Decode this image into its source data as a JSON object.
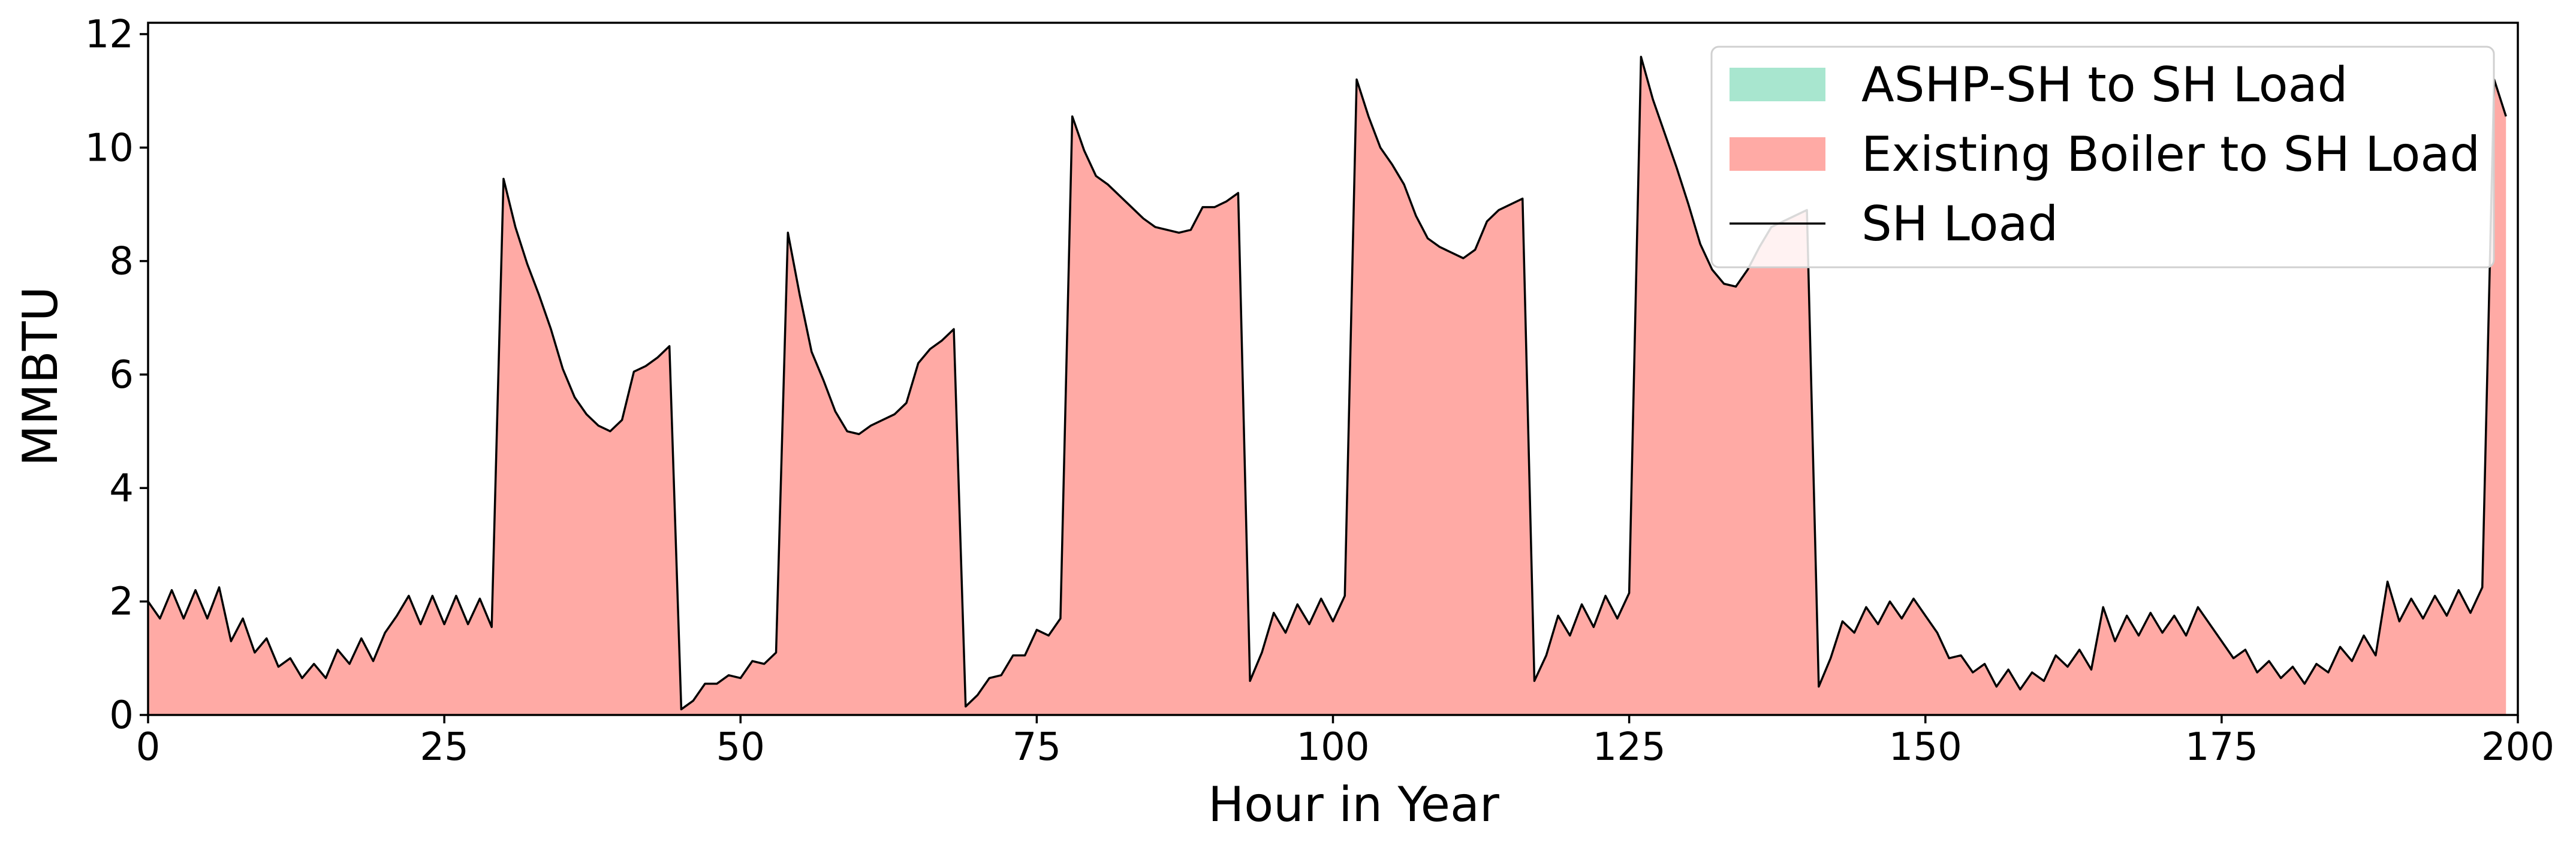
{
  "chart_data": {
    "type": "area",
    "title": "",
    "xlabel": "Hour in Year",
    "ylabel": "MMBTU",
    "xlim": [
      0,
      200
    ],
    "ylim": [
      0,
      12.2
    ],
    "x_ticks": [
      0,
      25,
      50,
      75,
      100,
      125,
      150,
      175,
      200
    ],
    "y_ticks": [
      0,
      2,
      4,
      6,
      8,
      10,
      12
    ],
    "grid": false,
    "legend_position": "top-right",
    "x": [
      0,
      1,
      2,
      3,
      4,
      5,
      6,
      7,
      8,
      9,
      10,
      11,
      12,
      13,
      14,
      15,
      16,
      17,
      18,
      19,
      20,
      21,
      22,
      23,
      24,
      25,
      26,
      27,
      28,
      29,
      30,
      31,
      32,
      33,
      34,
      35,
      36,
      37,
      38,
      39,
      40,
      41,
      42,
      43,
      44,
      45,
      46,
      47,
      48,
      49,
      50,
      51,
      52,
      53,
      54,
      55,
      56,
      57,
      58,
      59,
      60,
      61,
      62,
      63,
      64,
      65,
      66,
      67,
      68,
      69,
      70,
      71,
      72,
      73,
      74,
      75,
      76,
      77,
      78,
      79,
      80,
      81,
      82,
      83,
      84,
      85,
      86,
      87,
      88,
      89,
      90,
      91,
      92,
      93,
      94,
      95,
      96,
      97,
      98,
      99,
      100,
      101,
      102,
      103,
      104,
      105,
      106,
      107,
      108,
      109,
      110,
      111,
      112,
      113,
      114,
      115,
      116,
      117,
      118,
      119,
      120,
      121,
      122,
      123,
      124,
      125,
      126,
      127,
      128,
      129,
      130,
      131,
      132,
      133,
      134,
      135,
      136,
      137,
      138,
      139,
      140,
      141,
      142,
      143,
      144,
      145,
      146,
      147,
      148,
      149,
      150,
      151,
      152,
      153,
      154,
      155,
      156,
      157,
      158,
      159,
      160,
      161,
      162,
      163,
      164,
      165,
      166,
      167,
      168,
      169,
      170,
      171,
      172,
      173,
      174,
      175,
      176,
      177,
      178,
      179,
      180,
      181,
      182,
      183,
      184,
      185,
      186,
      187,
      188,
      189,
      190,
      191,
      192,
      193,
      194,
      195,
      196,
      197,
      198,
      199
    ],
    "series": [
      {
        "name": "ASHP-SH to SH Load",
        "kind": "stacked-area",
        "color": "#a8e6cf",
        "values": [
          0,
          0,
          0,
          0,
          0,
          0,
          0,
          0,
          0,
          0,
          0,
          0,
          0,
          0,
          0,
          0,
          0,
          0,
          0,
          0,
          0,
          0,
          0,
          0,
          0,
          0,
          0,
          0,
          0,
          0,
          0,
          0,
          0,
          0,
          0,
          0,
          0,
          0,
          0,
          0,
          0,
          0,
          0,
          0,
          0,
          0,
          0,
          0,
          0,
          0,
          0,
          0,
          0,
          0,
          0,
          0,
          0,
          0,
          0,
          0,
          0,
          0,
          0,
          0,
          0,
          0,
          0,
          0,
          0,
          0,
          0,
          0,
          0,
          0,
          0,
          0,
          0,
          0,
          0,
          0,
          0,
          0,
          0,
          0,
          0,
          0,
          0,
          0,
          0,
          0,
          0,
          0,
          0,
          0,
          0,
          0,
          0,
          0,
          0,
          0,
          0,
          0,
          0,
          0,
          0,
          0,
          0,
          0,
          0,
          0,
          0,
          0,
          0,
          0,
          0,
          0,
          0,
          0,
          0,
          0,
          0,
          0,
          0,
          0,
          0,
          0,
          0,
          0,
          0,
          0,
          0,
          0,
          0,
          0,
          0,
          0,
          0,
          0,
          0,
          0,
          0,
          0,
          0,
          0,
          0,
          0,
          0,
          0,
          0,
          0,
          0,
          0,
          0,
          0,
          0,
          0,
          0,
          0,
          0,
          0,
          0,
          0,
          0,
          0,
          0,
          0,
          0,
          0,
          0,
          0,
          0,
          0,
          0,
          0,
          0,
          0,
          0,
          0,
          0,
          0,
          0,
          0,
          0,
          0,
          0,
          0,
          0,
          0,
          0,
          0,
          0,
          0,
          0,
          0,
          0,
          0,
          0,
          0,
          0,
          0
        ]
      },
      {
        "name": "Existing Boiler to SH Load",
        "kind": "stacked-area",
        "color": "#ffaaa5",
        "values": [
          2.0,
          1.7,
          2.2,
          1.7,
          2.2,
          1.7,
          2.25,
          1.3,
          1.7,
          1.1,
          1.35,
          0.85,
          1.0,
          0.65,
          0.9,
          0.65,
          1.15,
          0.9,
          1.35,
          0.95,
          1.45,
          1.75,
          2.1,
          1.6,
          2.1,
          1.6,
          2.1,
          1.6,
          2.05,
          1.55,
          9.45,
          8.6,
          7.95,
          7.4,
          6.8,
          6.1,
          5.6,
          5.3,
          5.1,
          5.0,
          5.2,
          6.05,
          6.15,
          6.3,
          6.5,
          0.1,
          0.25,
          0.55,
          0.55,
          0.7,
          0.65,
          0.95,
          0.9,
          1.1,
          8.5,
          7.4,
          6.4,
          5.9,
          5.35,
          5.0,
          4.95,
          5.1,
          5.2,
          5.3,
          5.5,
          6.2,
          6.45,
          6.6,
          6.8,
          0.15,
          0.35,
          0.65,
          0.7,
          1.05,
          1.05,
          1.5,
          1.4,
          1.7,
          10.55,
          9.95,
          9.5,
          9.35,
          9.15,
          8.95,
          8.75,
          8.6,
          8.55,
          8.5,
          8.55,
          8.95,
          8.95,
          9.05,
          9.2,
          0.6,
          1.1,
          1.8,
          1.45,
          1.95,
          1.6,
          2.05,
          1.65,
          2.1,
          11.2,
          10.55,
          10.0,
          9.7,
          9.35,
          8.8,
          8.4,
          8.25,
          8.15,
          8.05,
          8.2,
          8.7,
          8.9,
          9.0,
          9.1,
          0.6,
          1.05,
          1.75,
          1.4,
          1.95,
          1.55,
          2.1,
          1.7,
          2.15,
          11.6,
          10.85,
          10.25,
          9.65,
          9.0,
          8.3,
          7.85,
          7.6,
          7.55,
          7.85,
          8.25,
          8.6,
          8.7,
          8.8,
          8.9,
          0.5,
          1.0,
          1.65,
          1.45,
          1.9,
          1.6,
          2.0,
          1.7,
          2.05,
          1.75,
          1.45,
          1.0,
          1.05,
          0.75,
          0.9,
          0.5,
          0.8,
          0.45,
          0.75,
          0.6,
          1.05,
          0.85,
          1.15,
          0.8,
          1.9,
          1.3,
          1.75,
          1.4,
          1.8,
          1.45,
          1.75,
          1.4,
          1.9,
          1.6,
          1.3,
          1.0,
          1.15,
          0.75,
          0.95,
          0.65,
          0.85,
          0.55,
          0.9,
          0.75,
          1.2,
          0.95,
          1.4,
          1.05,
          2.35,
          1.65,
          2.05,
          1.7,
          2.1,
          1.75,
          2.2,
          1.8,
          2.25,
          11.2,
          10.55
        ]
      },
      {
        "name": "SH Load",
        "kind": "line",
        "color": "#000000",
        "values": [
          2.0,
          1.7,
          2.2,
          1.7,
          2.2,
          1.7,
          2.25,
          1.3,
          1.7,
          1.1,
          1.35,
          0.85,
          1.0,
          0.65,
          0.9,
          0.65,
          1.15,
          0.9,
          1.35,
          0.95,
          1.45,
          1.75,
          2.1,
          1.6,
          2.1,
          1.6,
          2.1,
          1.6,
          2.05,
          1.55,
          9.45,
          8.6,
          7.95,
          7.4,
          6.8,
          6.1,
          5.6,
          5.3,
          5.1,
          5.0,
          5.2,
          6.05,
          6.15,
          6.3,
          6.5,
          0.1,
          0.25,
          0.55,
          0.55,
          0.7,
          0.65,
          0.95,
          0.9,
          1.1,
          8.5,
          7.4,
          6.4,
          5.9,
          5.35,
          5.0,
          4.95,
          5.1,
          5.2,
          5.3,
          5.5,
          6.2,
          6.45,
          6.6,
          6.8,
          0.15,
          0.35,
          0.65,
          0.7,
          1.05,
          1.05,
          1.5,
          1.4,
          1.7,
          10.55,
          9.95,
          9.5,
          9.35,
          9.15,
          8.95,
          8.75,
          8.6,
          8.55,
          8.5,
          8.55,
          8.95,
          8.95,
          9.05,
          9.2,
          0.6,
          1.1,
          1.8,
          1.45,
          1.95,
          1.6,
          2.05,
          1.65,
          2.1,
          11.2,
          10.55,
          10.0,
          9.7,
          9.35,
          8.8,
          8.4,
          8.25,
          8.15,
          8.05,
          8.2,
          8.7,
          8.9,
          9.0,
          9.1,
          0.6,
          1.05,
          1.75,
          1.4,
          1.95,
          1.55,
          2.1,
          1.7,
          2.15,
          11.6,
          10.85,
          10.25,
          9.65,
          9.0,
          8.3,
          7.85,
          7.6,
          7.55,
          7.85,
          8.25,
          8.6,
          8.7,
          8.8,
          8.9,
          0.5,
          1.0,
          1.65,
          1.45,
          1.9,
          1.6,
          2.0,
          1.7,
          2.05,
          1.75,
          1.45,
          1.0,
          1.05,
          0.75,
          0.9,
          0.5,
          0.8,
          0.45,
          0.75,
          0.6,
          1.05,
          0.85,
          1.15,
          0.8,
          1.9,
          1.3,
          1.75,
          1.4,
          1.8,
          1.45,
          1.75,
          1.4,
          1.9,
          1.6,
          1.3,
          1.0,
          1.15,
          0.75,
          0.95,
          0.65,
          0.85,
          0.55,
          0.9,
          0.75,
          1.2,
          0.95,
          1.4,
          1.05,
          2.35,
          1.65,
          2.05,
          1.7,
          2.1,
          1.75,
          2.2,
          1.8,
          2.25,
          11.2,
          10.55
        ]
      }
    ]
  }
}
